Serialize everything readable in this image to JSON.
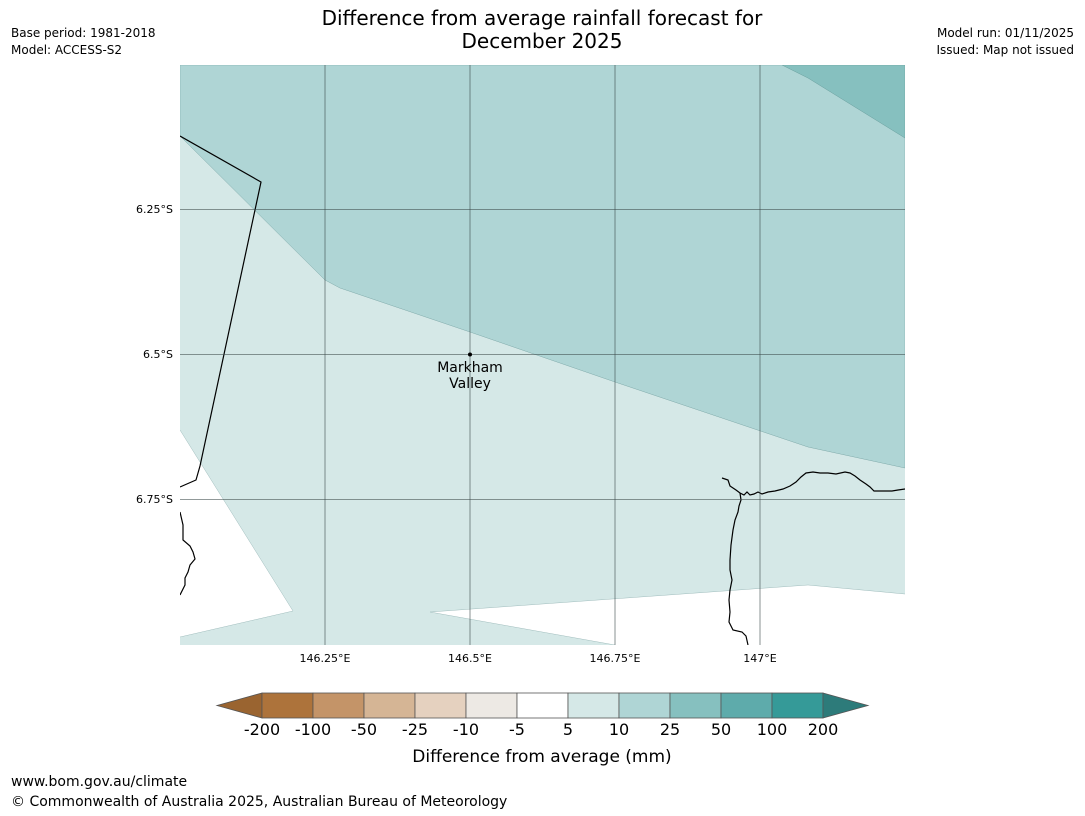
{
  "title": {
    "line1": "Difference from average rainfall forecast for",
    "line2": "December 2025"
  },
  "header": {
    "base_period": "Base period: 1981-2018",
    "model": "Model: ACCESS-S2",
    "model_run": "Model run: 01/11/2025",
    "issued": "Issued: Map not issued"
  },
  "map": {
    "place_label_line1": "Markham",
    "place_label_line2": "Valley",
    "lat_labels": [
      "6.25°S",
      "6.5°S",
      "6.75°S"
    ],
    "lon_labels": [
      "146.25°E",
      "146.5°E",
      "146.75°E",
      "147°E"
    ],
    "extent": {
      "lon_min": 146.0,
      "lon_max": 147.25,
      "lat_min": -7.0,
      "lat_max": -6.0
    }
  },
  "legend": {
    "tick_labels": [
      "-200",
      "-100",
      "-50",
      "-25",
      "-10",
      "-5",
      "5",
      "10",
      "25",
      "50",
      "100",
      "200"
    ],
    "colors": [
      "#9a6430",
      "#ad733b",
      "#c49468",
      "#d5b595",
      "#e5d1bf",
      "#ede9e4",
      "#ffffff",
      "#d5e8e7",
      "#afd5d5",
      "#86c0bf",
      "#5eabab",
      "#359a98",
      "#2d7b7a"
    ],
    "label": "Difference from average (mm)"
  },
  "footer": {
    "url": "www.bom.gov.au/climate",
    "copyright": "© Commonwealth of Australia 2025, Australian Bureau of Meteorology"
  }
}
